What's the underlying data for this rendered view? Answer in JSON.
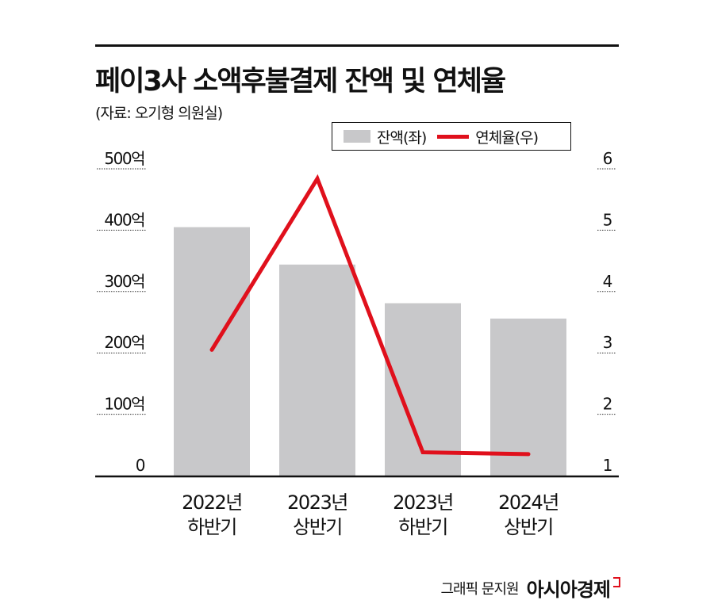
{
  "title": "페이3사 소액후불결제 잔액 및 연체율",
  "subtitle": "(자료: 오기형 의원실)",
  "credit": "그래픽 문지원",
  "brand": "아시아경제",
  "colors": {
    "bar": "#c8c8ca",
    "line": "#e0101c",
    "axis": "#111111"
  },
  "chart_data": {
    "type": "bar+line",
    "categories": [
      [
        "2022년",
        "하반기"
      ],
      [
        "2023년",
        "상반기"
      ],
      [
        "2023년",
        "하반기"
      ],
      [
        "2024년",
        "상반기"
      ]
    ],
    "series": [
      {
        "name": "잔액(좌)",
        "type": "bar",
        "axis": "left",
        "values": [
          405,
          344,
          281,
          256
        ]
      },
      {
        "name": "연체율(우)",
        "type": "line",
        "axis": "right",
        "values": [
          3.05,
          5.84,
          1.38,
          1.35
        ]
      }
    ],
    "left_axis": {
      "ylim": [
        0,
        500
      ],
      "ticks": [
        0,
        100,
        200,
        300,
        400,
        500
      ],
      "tick_labels": [
        "0",
        "100억",
        "200억",
        "300억",
        "400억",
        "500억"
      ]
    },
    "right_axis": {
      "ylim": [
        1,
        6
      ],
      "ticks": [
        1,
        2,
        3,
        4,
        5,
        6
      ],
      "tick_labels": [
        "1",
        "2",
        "3",
        "4",
        "5",
        "6"
      ]
    },
    "grid": "dotted tick underlines",
    "legend": {
      "placement": "top-right",
      "entries": [
        "잔액(좌)",
        "연체율(우)"
      ]
    }
  }
}
